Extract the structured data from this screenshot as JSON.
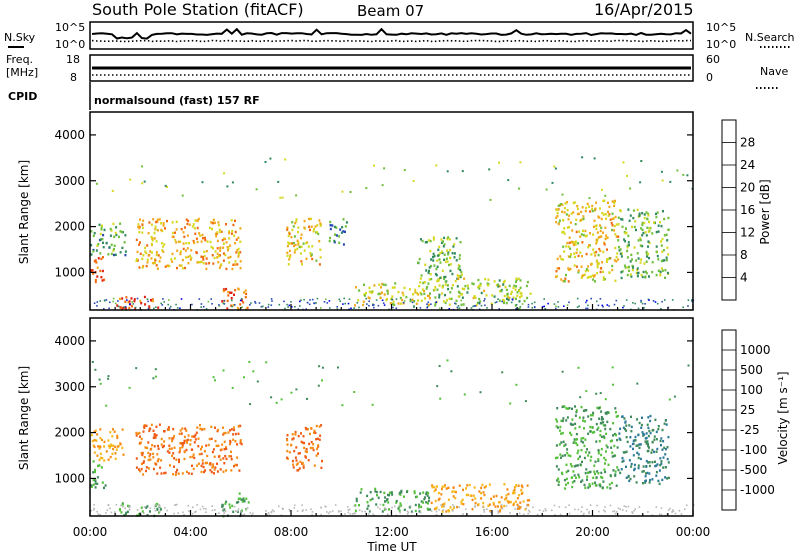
{
  "header": {
    "station": "South Pole Station (fitACF)",
    "beam": "Beam 07",
    "date": "16/Apr/2015"
  },
  "noise_panel": {
    "left_label": "N.Sky",
    "right_label": "N.Search",
    "left_ticks": [
      "10^5",
      "10^0"
    ],
    "right_ticks": [
      "10^5",
      "10^0"
    ]
  },
  "freq_panel": {
    "left_label_1": "Freq.",
    "left_label_2": "[MHz]",
    "right_label": "Nave",
    "left_ticks": [
      "18",
      "8"
    ],
    "right_ticks": [
      "60",
      "0"
    ]
  },
  "cpid": {
    "label": "CPID",
    "value": "normalsound (fast) 157 RF"
  },
  "colorbars": {
    "power": {
      "label": "Power [dB]",
      "ticks": [
        "28",
        "24",
        "20",
        "16",
        "12",
        "8",
        "4"
      ],
      "colors": [
        "#0000ee",
        "#2846b4",
        "#2f8a5e",
        "#6fbf3c",
        "#d6d820",
        "#f2a81c",
        "#f26a10",
        "#e02010"
      ]
    },
    "velocity": {
      "label": "Velocity [m s⁻¹]",
      "ticks": [
        "1000",
        "500",
        "100",
        "25",
        "-25",
        "-100",
        "-500",
        "-1000"
      ],
      "colors": [
        "#1e3aa8",
        "#2e7a9a",
        "#3f8a5a",
        "#55c03a",
        "#b8b8b8",
        "#f7b81c",
        "#f58c14",
        "#f05a14",
        "#e01010"
      ]
    }
  },
  "chart_data": [
    {
      "type": "heatmap",
      "title": "",
      "xlabel": "Time UT",
      "ylabel": "Slant Range [km]",
      "x_ticks": [
        "00:00",
        "04:00",
        "08:00",
        "12:00",
        "16:00",
        "20:00",
        "00:00"
      ],
      "y_ticks": [
        1000,
        2000,
        3000,
        4000
      ],
      "ylim": [
        180,
        4500
      ],
      "colorbar": "Power [dB]",
      "regions": [
        {
          "t0": 0.0,
          "t1": 0.6,
          "r0": 800,
          "r1": 1400,
          "level": 28
        },
        {
          "t0": 0.0,
          "t1": 1.4,
          "r0": 1400,
          "r1": 2100,
          "level": 12
        },
        {
          "t0": 1.0,
          "t1": 2.8,
          "r0": 200,
          "r1": 500,
          "level": 28
        },
        {
          "t0": 1.8,
          "t1": 6.0,
          "r0": 1100,
          "r1": 2200,
          "level": 22
        },
        {
          "t0": 5.2,
          "t1": 6.3,
          "r0": 200,
          "r1": 700,
          "level": 26
        },
        {
          "t0": 7.8,
          "t1": 9.2,
          "r0": 1200,
          "r1": 2200,
          "level": 20
        },
        {
          "t0": 9.5,
          "t1": 10.2,
          "r0": 1600,
          "r1": 2200,
          "level": 10
        },
        {
          "t0": 10.5,
          "t1": 13.5,
          "r0": 300,
          "r1": 800,
          "level": 18
        },
        {
          "t0": 13.0,
          "t1": 14.8,
          "r0": 800,
          "r1": 1800,
          "level": 14
        },
        {
          "t0": 13.5,
          "t1": 17.5,
          "r0": 300,
          "r1": 900,
          "level": 16
        },
        {
          "t0": 18.5,
          "t1": 21.0,
          "r0": 800,
          "r1": 2600,
          "level": 20
        },
        {
          "t0": 21.0,
          "t1": 23.0,
          "r0": 900,
          "r1": 2400,
          "level": 14
        }
      ]
    },
    {
      "type": "heatmap",
      "title": "",
      "xlabel": "Time UT",
      "ylabel": "Slant Range [km]",
      "x_ticks": [
        "00:00",
        "04:00",
        "08:00",
        "12:00",
        "16:00",
        "20:00",
        "00:00"
      ],
      "y_ticks": [
        1000,
        2000,
        3000,
        4000
      ],
      "ylim": [
        180,
        4500
      ],
      "colorbar": "Velocity [m s⁻¹]",
      "regions": [
        {
          "t0": 0.0,
          "t1": 0.6,
          "r0": 800,
          "r1": 1400,
          "velocity": 100
        },
        {
          "t0": 0.0,
          "t1": 1.4,
          "r0": 1400,
          "r1": 2100,
          "velocity": -100
        },
        {
          "t0": 1.0,
          "t1": 2.8,
          "r0": 200,
          "r1": 500,
          "velocity": 100
        },
        {
          "t0": 1.8,
          "t1": 6.0,
          "r0": 1100,
          "r1": 2200,
          "velocity": -500
        },
        {
          "t0": 5.2,
          "t1": 6.3,
          "r0": 200,
          "r1": 700,
          "velocity": 100
        },
        {
          "t0": 7.8,
          "t1": 9.2,
          "r0": 1200,
          "r1": 2200,
          "velocity": -500
        },
        {
          "t0": 10.5,
          "t1": 13.5,
          "r0": 300,
          "r1": 800,
          "velocity": 100
        },
        {
          "t0": 13.5,
          "t1": 17.5,
          "r0": 300,
          "r1": 900,
          "velocity": -100
        },
        {
          "t0": 18.5,
          "t1": 21.0,
          "r0": 800,
          "r1": 2600,
          "velocity": 100
        },
        {
          "t0": 21.0,
          "t1": 23.0,
          "r0": 900,
          "r1": 2400,
          "velocity": 500
        }
      ]
    }
  ]
}
